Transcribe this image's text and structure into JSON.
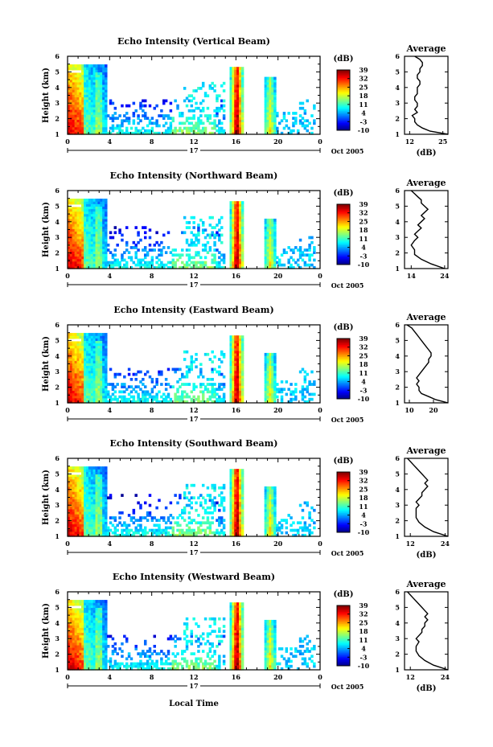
{
  "figure": {
    "shared_xlabel": "Local Time",
    "date_label": "Oct 2005",
    "day_label": "17"
  },
  "chart_data": [
    {
      "type": "heatmap",
      "title": "Echo Intensity (Vertical Beam)",
      "ylabel": "Height (km)",
      "xlabel": "Local Time",
      "x_ticks": [
        "0",
        "4",
        "8",
        "12",
        "16",
        "20",
        "0"
      ],
      "y_ticks": [
        "1",
        "2",
        "3",
        "4",
        "5",
        "6"
      ],
      "xlim": [
        0,
        24
      ],
      "ylim": [
        1,
        6
      ],
      "colorbar": {
        "label": "(dB)",
        "ticks": [
          "39",
          "32",
          "25",
          "18",
          "11",
          "4",
          "-3",
          "-10"
        ],
        "range": [
          -10,
          39
        ]
      },
      "average": {
        "title": "Average",
        "xlabel": "(dB)",
        "x_ticks": [
          "12",
          "25"
        ],
        "xlim": [
          10,
          27
        ],
        "points": [
          [
            27,
            1.0
          ],
          [
            20,
            1.2
          ],
          [
            17,
            1.4
          ],
          [
            15,
            1.6
          ],
          [
            14,
            1.8
          ],
          [
            14,
            2.0
          ],
          [
            13,
            2.2
          ],
          [
            15,
            2.4
          ],
          [
            14,
            2.6
          ],
          [
            15,
            2.8
          ],
          [
            15,
            3.0
          ],
          [
            14,
            3.2
          ],
          [
            14,
            3.4
          ],
          [
            15,
            3.6
          ],
          [
            15,
            3.8
          ],
          [
            15,
            4.0
          ],
          [
            16,
            4.2
          ],
          [
            16,
            4.4
          ],
          [
            15,
            4.6
          ],
          [
            15,
            4.8
          ],
          [
            16,
            5.0
          ],
          [
            16,
            5.2
          ],
          [
            17,
            5.4
          ],
          [
            17,
            5.6
          ],
          [
            16,
            5.8
          ],
          [
            14,
            6.0
          ]
        ]
      }
    },
    {
      "type": "heatmap",
      "title": "Echo Intensity (Northward Beam)",
      "ylabel": "Height (km)",
      "xlabel": "Local Time",
      "x_ticks": [
        "0",
        "4",
        "8",
        "12",
        "16",
        "20",
        "0"
      ],
      "y_ticks": [
        "1",
        "2",
        "3",
        "4",
        "5",
        "6"
      ],
      "xlim": [
        0,
        24
      ],
      "ylim": [
        1,
        6
      ],
      "colorbar": {
        "label": "(dB)",
        "ticks": [
          "39",
          "32",
          "25",
          "18",
          "11",
          "4",
          "-3",
          "-10"
        ],
        "range": [
          -10,
          39
        ]
      },
      "average": {
        "title": "Average",
        "xlabel": "",
        "x_ticks": [
          "14",
          "24"
        ],
        "xlim": [
          12,
          25
        ],
        "points": [
          [
            24,
            1.0
          ],
          [
            20,
            1.3
          ],
          [
            17,
            1.6
          ],
          [
            15,
            1.9
          ],
          [
            15,
            2.2
          ],
          [
            14,
            2.5
          ],
          [
            15,
            2.8
          ],
          [
            16,
            3.0
          ],
          [
            15,
            3.2
          ],
          [
            16,
            3.4
          ],
          [
            17,
            3.6
          ],
          [
            16,
            3.8
          ],
          [
            17,
            4.0
          ],
          [
            18,
            4.2
          ],
          [
            17,
            4.4
          ],
          [
            18,
            4.6
          ],
          [
            19,
            4.8
          ],
          [
            18,
            5.0
          ],
          [
            17,
            5.2
          ],
          [
            17,
            5.4
          ],
          [
            16,
            5.6
          ],
          [
            15,
            5.8
          ],
          [
            14,
            6.0
          ]
        ]
      }
    },
    {
      "type": "heatmap",
      "title": "Echo Intensity (Eastward Beam)",
      "ylabel": "Height (km)",
      "xlabel": "Local Time",
      "x_ticks": [
        "0",
        "4",
        "8",
        "12",
        "16",
        "20",
        "0"
      ],
      "y_ticks": [
        "1",
        "2",
        "3",
        "4",
        "5",
        "6"
      ],
      "xlim": [
        0,
        24
      ],
      "ylim": [
        1,
        6
      ],
      "colorbar": {
        "label": "(dB)",
        "ticks": [
          "39",
          "32",
          "25",
          "18",
          "11",
          "4",
          "-3",
          "-10"
        ],
        "range": [
          -10,
          39
        ]
      },
      "average": {
        "title": "Average",
        "xlabel": "",
        "x_ticks": [
          "10",
          "20"
        ],
        "xlim": [
          8,
          26
        ],
        "points": [
          [
            26,
            1.0
          ],
          [
            21,
            1.2
          ],
          [
            18,
            1.4
          ],
          [
            15,
            1.6
          ],
          [
            14,
            1.8
          ],
          [
            14,
            2.0
          ],
          [
            13,
            2.2
          ],
          [
            14,
            2.4
          ],
          [
            13,
            2.6
          ],
          [
            14,
            2.8
          ],
          [
            15,
            3.0
          ],
          [
            16,
            3.2
          ],
          [
            17,
            3.4
          ],
          [
            18,
            3.6
          ],
          [
            18,
            3.8
          ],
          [
            19,
            4.0
          ],
          [
            19,
            4.2
          ],
          [
            18,
            4.4
          ],
          [
            17,
            4.6
          ],
          [
            16,
            4.8
          ],
          [
            15,
            5.0
          ],
          [
            14,
            5.2
          ],
          [
            13,
            5.4
          ],
          [
            12,
            5.6
          ],
          [
            11,
            5.8
          ],
          [
            9,
            6.0
          ]
        ]
      }
    },
    {
      "type": "heatmap",
      "title": "Echo Intensity (Southward Beam)",
      "ylabel": "Height (km)",
      "xlabel": "Local Time",
      "x_ticks": [
        "0",
        "4",
        "8",
        "12",
        "16",
        "20",
        "0"
      ],
      "y_ticks": [
        "1",
        "2",
        "3",
        "4",
        "5",
        "6"
      ],
      "xlim": [
        0,
        24
      ],
      "ylim": [
        1,
        6
      ],
      "colorbar": {
        "label": "(dB)",
        "ticks": [
          "39",
          "32",
          "25",
          "18",
          "11",
          "4",
          "-3",
          "-10"
        ],
        "range": [
          -10,
          39
        ]
      },
      "average": {
        "title": "Average",
        "xlabel": "(dB)",
        "x_ticks": [
          "12",
          "24"
        ],
        "xlim": [
          10,
          25
        ],
        "points": [
          [
            25,
            1.0
          ],
          [
            20,
            1.3
          ],
          [
            17,
            1.6
          ],
          [
            15,
            1.9
          ],
          [
            14,
            2.2
          ],
          [
            14,
            2.5
          ],
          [
            14,
            2.8
          ],
          [
            15,
            3.0
          ],
          [
            14,
            3.2
          ],
          [
            15,
            3.4
          ],
          [
            16,
            3.6
          ],
          [
            16,
            3.8
          ],
          [
            17,
            4.0
          ],
          [
            18,
            4.2
          ],
          [
            17,
            4.4
          ],
          [
            18,
            4.6
          ],
          [
            17,
            4.8
          ],
          [
            16,
            5.0
          ],
          [
            15,
            5.2
          ],
          [
            14,
            5.4
          ],
          [
            13,
            5.6
          ],
          [
            12,
            5.8
          ],
          [
            11,
            6.0
          ]
        ]
      }
    },
    {
      "type": "heatmap",
      "title": "Echo Intensity (Westward Beam)",
      "ylabel": "Height (km)",
      "xlabel": "Local Time",
      "x_ticks": [
        "0",
        "4",
        "8",
        "12",
        "16",
        "20",
        "0"
      ],
      "y_ticks": [
        "1",
        "2",
        "3",
        "4",
        "5",
        "6"
      ],
      "xlim": [
        0,
        24
      ],
      "ylim": [
        1,
        6
      ],
      "colorbar": {
        "label": "(dB)",
        "ticks": [
          "39",
          "32",
          "25",
          "18",
          "11",
          "4",
          "-3",
          "-10"
        ],
        "range": [
          -10,
          39
        ]
      },
      "average": {
        "title": "Average",
        "xlabel": "(dB)",
        "x_ticks": [
          "12",
          "24"
        ],
        "xlim": [
          10,
          25
        ],
        "points": [
          [
            25,
            1.0
          ],
          [
            20,
            1.3
          ],
          [
            17,
            1.6
          ],
          [
            15,
            1.9
          ],
          [
            14,
            2.2
          ],
          [
            14,
            2.5
          ],
          [
            15,
            2.8
          ],
          [
            14,
            3.0
          ],
          [
            15,
            3.2
          ],
          [
            16,
            3.4
          ],
          [
            16,
            3.6
          ],
          [
            17,
            3.8
          ],
          [
            17,
            4.0
          ],
          [
            18,
            4.2
          ],
          [
            17,
            4.4
          ],
          [
            18,
            4.6
          ],
          [
            17,
            4.8
          ],
          [
            16,
            5.0
          ],
          [
            15,
            5.2
          ],
          [
            14,
            5.4
          ],
          [
            13,
            5.6
          ],
          [
            12,
            5.8
          ],
          [
            11,
            6.0
          ]
        ]
      }
    }
  ]
}
